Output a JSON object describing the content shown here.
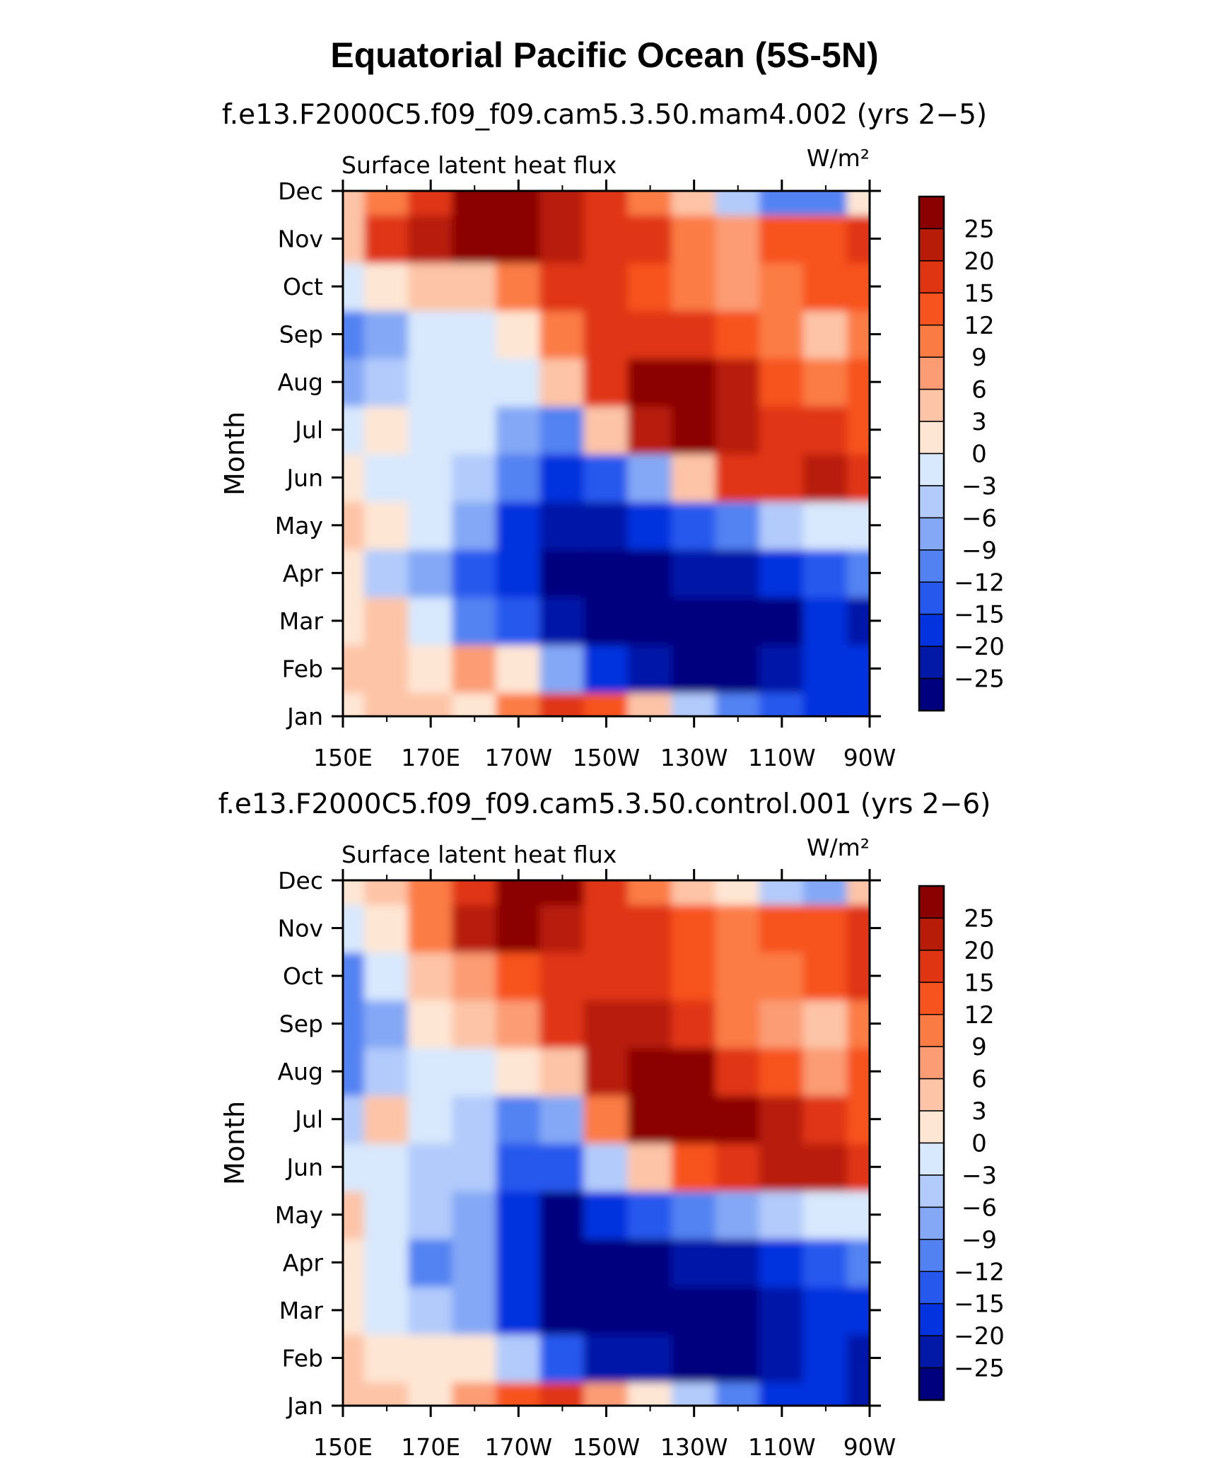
{
  "figure": {
    "title": "Equatorial Pacific Ocean (5S-5N)"
  },
  "chart_data": [
    {
      "type": "heatmap",
      "title": "f.e13.F2000C5.f09_f09.cam5.3.50.mam4.002 (yrs 2−5)",
      "variable_label": "Surface latent heat flux",
      "units_label": "W/m²",
      "ylabel": "Month",
      "xlabel": "",
      "x_ticks": [
        "150E",
        "170E",
        "170W",
        "150W",
        "130W",
        "110W",
        "90W"
      ],
      "x_lon": [
        150,
        160,
        170,
        180,
        190,
        200,
        210,
        220,
        230,
        240,
        250,
        260,
        270
      ],
      "y_ticks": [
        "Jan",
        "Feb",
        "Mar",
        "Apr",
        "May",
        "Jun",
        "Jul",
        "Aug",
        "Sep",
        "Oct",
        "Nov",
        "Dec"
      ],
      "colorbar_levels": [
        "25",
        "20",
        "15",
        "12",
        "9",
        "6",
        "3",
        "0",
        "−3",
        "−6",
        "−9",
        "−12",
        "−15",
        "−20",
        "−25"
      ],
      "colorbar_colors": [
        "#8b0000",
        "#b71c08",
        "#e03512",
        "#f7531f",
        "#fb7b45",
        "#fb9c74",
        "#fdc4a7",
        "#fee6d4",
        "#d8e8fd",
        "#b2cbfb",
        "#84a8f5",
        "#5282f2",
        "#2758ee",
        "#0333de",
        "#0219a8",
        "#00007f"
      ],
      "grid": false,
      "values": [
        [
          2,
          5,
          3,
          0,
          10,
          18,
          12,
          3,
          -5,
          -12,
          -15,
          -18,
          -20
        ],
        [
          3,
          5,
          0,
          6,
          2,
          -8,
          -20,
          -25,
          -26,
          -27,
          -25,
          -18,
          -20
        ],
        [
          1,
          3,
          -3,
          -10,
          -15,
          -24,
          -26,
          -27,
          -27,
          -27,
          -26,
          -20,
          -22
        ],
        [
          0,
          -4,
          -8,
          -15,
          -20,
          -26,
          -26,
          -26,
          -25,
          -24,
          -20,
          -15,
          -12
        ],
        [
          3,
          0,
          -3,
          -8,
          -18,
          -25,
          -22,
          -20,
          -15,
          -10,
          -6,
          -3,
          -2
        ],
        [
          0,
          -1,
          -3,
          -5,
          -12,
          -20,
          -15,
          -8,
          5,
          15,
          18,
          20,
          15
        ],
        [
          -2,
          2,
          -1,
          -3,
          -8,
          -10,
          5,
          22,
          25,
          20,
          18,
          16,
          14
        ],
        [
          -8,
          -4,
          -1,
          -2,
          -1,
          3,
          18,
          25,
          26,
          20,
          14,
          10,
          12
        ],
        [
          -12,
          -8,
          -3,
          -2,
          2,
          10,
          15,
          18,
          18,
          12,
          10,
          5,
          10
        ],
        [
          -3,
          0,
          3,
          5,
          10,
          15,
          15,
          12,
          10,
          8,
          10,
          12,
          14
        ],
        [
          5,
          15,
          20,
          26,
          25,
          22,
          18,
          15,
          10,
          8,
          12,
          12,
          15
        ],
        [
          5,
          10,
          15,
          25,
          25,
          20,
          15,
          10,
          3,
          -5,
          -10,
          -10,
          0
        ]
      ]
    },
    {
      "type": "heatmap",
      "title": "f.e13.F2000C5.f09_f09.cam5.3.50.control.001 (yrs 2−6)",
      "variable_label": "Surface latent heat flux",
      "units_label": "W/m²",
      "ylabel": "Month",
      "xlabel": "",
      "x_ticks": [
        "150E",
        "170E",
        "170W",
        "150W",
        "130W",
        "110W",
        "90W"
      ],
      "x_lon": [
        150,
        160,
        170,
        180,
        190,
        200,
        210,
        220,
        230,
        240,
        250,
        260,
        270
      ],
      "y_ticks": [
        "Jan",
        "Feb",
        "Mar",
        "Apr",
        "May",
        "Jun",
        "Jul",
        "Aug",
        "Sep",
        "Oct",
        "Nov",
        "Dec"
      ],
      "colorbar_levels": [
        "25",
        "20",
        "15",
        "12",
        "9",
        "6",
        "3",
        "0",
        "−3",
        "−6",
        "−9",
        "−12",
        "−15",
        "−20",
        "−25"
      ],
      "colorbar_colors": [
        "#8b0000",
        "#b71c08",
        "#e03512",
        "#f7531f",
        "#fb7b45",
        "#fb9c74",
        "#fdc4a7",
        "#fee6d4",
        "#d8e8fd",
        "#b2cbfb",
        "#84a8f5",
        "#5282f2",
        "#2758ee",
        "#0333de",
        "#0219a8",
        "#00007f"
      ],
      "grid": false,
      "values": [
        [
          5,
          3,
          2,
          8,
          14,
          15,
          8,
          0,
          -5,
          -12,
          -18,
          -20,
          -25
        ],
        [
          3,
          2,
          0,
          2,
          -5,
          -15,
          -22,
          -25,
          -26,
          -26,
          -22,
          -20,
          -22
        ],
        [
          2,
          -2,
          -5,
          -8,
          -18,
          -26,
          -27,
          -27,
          -27,
          -26,
          -25,
          -20,
          -20
        ],
        [
          1,
          -3,
          -10,
          -8,
          -20,
          -26,
          -26,
          -26,
          -25,
          -24,
          -18,
          -15,
          -12
        ],
        [
          3,
          -2,
          -5,
          -8,
          -20,
          -26,
          -20,
          -15,
          -12,
          -8,
          -5,
          -3,
          -2
        ],
        [
          -3,
          -3,
          -4,
          -6,
          -15,
          -15,
          -5,
          5,
          12,
          18,
          20,
          20,
          15
        ],
        [
          -5,
          5,
          -2,
          -4,
          -10,
          -8,
          10,
          25,
          26,
          25,
          20,
          18,
          12
        ],
        [
          -12,
          -6,
          -3,
          -3,
          0,
          5,
          22,
          26,
          25,
          18,
          12,
          8,
          12
        ],
        [
          -10,
          -8,
          0,
          3,
          6,
          15,
          20,
          20,
          15,
          10,
          6,
          3,
          9
        ],
        [
          -10,
          -3,
          5,
          8,
          12,
          15,
          18,
          15,
          12,
          9,
          9,
          12,
          15
        ],
        [
          -3,
          0,
          10,
          22,
          26,
          22,
          18,
          16,
          12,
          10,
          12,
          12,
          18
        ],
        [
          0,
          3,
          10,
          15,
          25,
          25,
          15,
          10,
          3,
          0,
          -5,
          -8,
          5
        ]
      ]
    }
  ]
}
